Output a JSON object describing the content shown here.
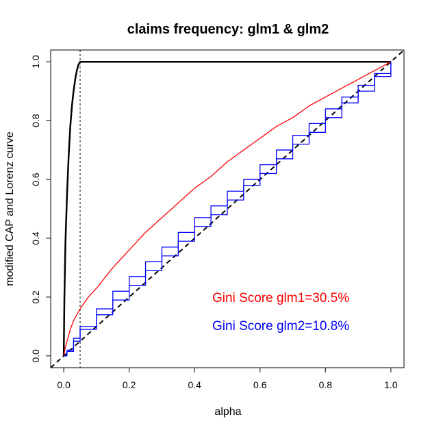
{
  "chart_data": {
    "type": "line",
    "title": "claims frequency: glm1 & glm2",
    "xlabel": "alpha",
    "ylabel": "modified CAP and Lorenz curve",
    "xlim": [
      -0.04,
      1.04
    ],
    "ylim": [
      -0.04,
      1.04
    ],
    "x_ticks": [
      0.0,
      0.2,
      0.4,
      0.6,
      0.8,
      1.0
    ],
    "y_ticks": [
      0.0,
      0.2,
      0.4,
      0.6,
      0.8,
      1.0
    ],
    "x_tick_labels": [
      "0.0",
      "0.2",
      "0.4",
      "0.6",
      "0.8",
      "1.0"
    ],
    "y_tick_labels": [
      "0.0",
      "0.2",
      "0.4",
      "0.6",
      "0.8",
      "1.0"
    ],
    "grid": false,
    "vertical_reference": {
      "x": 0.05,
      "style": "dotted",
      "color": "#000000"
    },
    "diagonal_reference": {
      "style": "dashed",
      "color": "#000000"
    },
    "series": [
      {
        "color": "#000000",
        "points": [
          [
            0,
            0
          ],
          [
            0.002,
            0.2
          ],
          [
            0.005,
            0.38
          ],
          [
            0.01,
            0.55
          ],
          [
            0.015,
            0.68
          ],
          [
            0.02,
            0.78
          ],
          [
            0.025,
            0.85
          ],
          [
            0.03,
            0.9
          ],
          [
            0.035,
            0.94
          ],
          [
            0.04,
            0.97
          ],
          [
            0.045,
            0.99
          ],
          [
            0.05,
            1.0
          ],
          [
            1.0,
            1.0
          ]
        ]
      },
      {
        "color": "#ff0000",
        "points": [
          [
            0,
            0
          ],
          [
            0.005,
            0.03
          ],
          [
            0.01,
            0.05
          ],
          [
            0.02,
            0.09
          ],
          [
            0.03,
            0.12
          ],
          [
            0.05,
            0.16
          ],
          [
            0.075,
            0.2
          ],
          [
            0.1,
            0.23
          ],
          [
            0.15,
            0.3
          ],
          [
            0.2,
            0.36
          ],
          [
            0.25,
            0.42
          ],
          [
            0.3,
            0.47
          ],
          [
            0.35,
            0.52
          ],
          [
            0.4,
            0.57
          ],
          [
            0.45,
            0.61
          ],
          [
            0.5,
            0.66
          ],
          [
            0.55,
            0.7
          ],
          [
            0.6,
            0.74
          ],
          [
            0.65,
            0.78
          ],
          [
            0.7,
            0.81
          ],
          [
            0.75,
            0.85
          ],
          [
            0.8,
            0.88
          ],
          [
            0.85,
            0.91
          ],
          [
            0.9,
            0.94
          ],
          [
            0.95,
            0.97
          ],
          [
            1.0,
            1.0
          ]
        ]
      },
      {
        "color": "#0000ff",
        "points": [
          [
            0,
            0
          ],
          [
            0.01,
            0.02
          ],
          [
            0.03,
            0.06
          ],
          [
            0.05,
            0.1
          ],
          [
            0.1,
            0.16
          ],
          [
            0.15,
            0.22
          ],
          [
            0.2,
            0.27
          ],
          [
            0.25,
            0.32
          ],
          [
            0.3,
            0.37
          ],
          [
            0.35,
            0.42
          ],
          [
            0.4,
            0.47
          ],
          [
            0.45,
            0.51
          ],
          [
            0.5,
            0.56
          ],
          [
            0.55,
            0.6
          ],
          [
            0.6,
            0.65
          ],
          [
            0.65,
            0.7
          ],
          [
            0.7,
            0.75
          ],
          [
            0.75,
            0.79
          ],
          [
            0.8,
            0.84
          ],
          [
            0.85,
            0.88
          ],
          [
            0.9,
            0.92
          ],
          [
            0.95,
            0.96
          ],
          [
            1.0,
            1.0
          ]
        ]
      },
      {
        "color": "#0000ff",
        "points": [
          [
            0,
            0
          ],
          [
            0.01,
            0.015
          ],
          [
            0.03,
            0.05
          ],
          [
            0.05,
            0.09
          ],
          [
            0.1,
            0.14
          ],
          [
            0.15,
            0.19
          ],
          [
            0.2,
            0.24
          ],
          [
            0.25,
            0.29
          ],
          [
            0.3,
            0.34
          ],
          [
            0.35,
            0.39
          ],
          [
            0.4,
            0.44
          ],
          [
            0.45,
            0.48
          ],
          [
            0.5,
            0.53
          ],
          [
            0.55,
            0.58
          ],
          [
            0.6,
            0.62
          ],
          [
            0.65,
            0.67
          ],
          [
            0.7,
            0.72
          ],
          [
            0.75,
            0.76
          ],
          [
            0.8,
            0.81
          ],
          [
            0.85,
            0.86
          ],
          [
            0.9,
            0.9
          ],
          [
            0.95,
            0.95
          ],
          [
            1.0,
            1.0
          ]
        ]
      }
    ],
    "annotations": [
      {
        "text": "Gini Score glm1=30.5%",
        "color": "#ff0000"
      },
      {
        "text": "Gini Score glm2=10.8%",
        "color": "#0000ff"
      }
    ]
  }
}
